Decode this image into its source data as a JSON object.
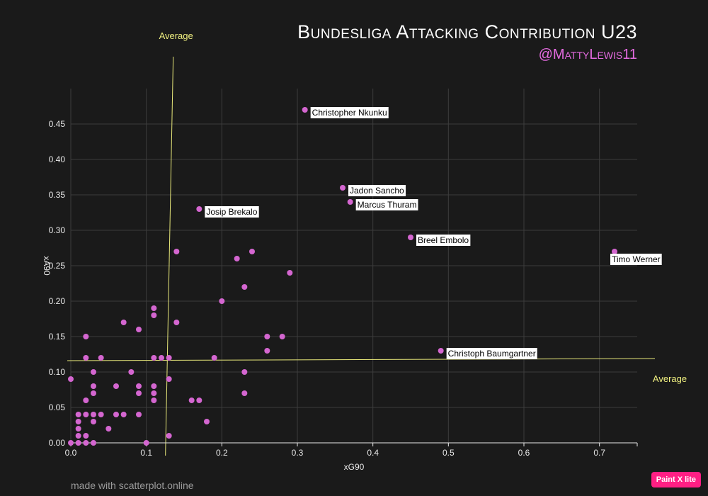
{
  "header": {
    "title": "Bundesliga Attacking Contribution U23",
    "subtitle": "@MattyLewis11"
  },
  "footer": {
    "credit": "made with scatterplot.online"
  },
  "badge": {
    "label": "Paint X lite"
  },
  "colors": {
    "background": "#1a1a1a",
    "point": "#d466d0",
    "average_line": "#e8e87a",
    "subtitle": "#e46be0",
    "badge": "#ff1f84"
  },
  "chart_data": {
    "type": "scatter",
    "xlabel": "xG90",
    "ylabel": "xA90",
    "xlim": [
      0,
      0.75
    ],
    "ylim": [
      0,
      0.5
    ],
    "x_ticks": [
      0,
      0.1,
      0.2,
      0.3,
      0.4,
      0.5,
      0.6,
      0.7
    ],
    "x_tick_labels": [
      "0.0",
      "0.1",
      "0.2",
      "0.3",
      "0.4",
      "0.5",
      "0.6",
      "0.7"
    ],
    "y_ticks": [
      0,
      0.05,
      0.1,
      0.15,
      0.2,
      0.25,
      0.3,
      0.35,
      0.4,
      0.45
    ],
    "y_tick_labels": [
      "0.00",
      "0.05",
      "0.10",
      "0.15",
      "0.20",
      "0.25",
      "0.30",
      "0.35",
      "0.40",
      "0.45"
    ],
    "grid": true,
    "averages": {
      "x": {
        "value": 0.13,
        "label": "Average"
      },
      "y": {
        "value": 0.11,
        "label": "Average"
      }
    },
    "labeled_points": [
      {
        "name": "Christopher Nkunku",
        "x": 0.31,
        "y": 0.47
      },
      {
        "name": "Jadon Sancho",
        "x": 0.36,
        "y": 0.36
      },
      {
        "name": "Marcus Thuram",
        "x": 0.37,
        "y": 0.34
      },
      {
        "name": "Josip Brekalo",
        "x": 0.17,
        "y": 0.33
      },
      {
        "name": "Breel Embolo",
        "x": 0.45,
        "y": 0.29
      },
      {
        "name": "Timo Werner",
        "x": 0.72,
        "y": 0.27
      },
      {
        "name": "Christoph Baumgartner",
        "x": 0.49,
        "y": 0.13
      }
    ],
    "points": [
      [
        0.14,
        0.27
      ],
      [
        0.24,
        0.27
      ],
      [
        0.22,
        0.26
      ],
      [
        0.29,
        0.24
      ],
      [
        0.23,
        0.22
      ],
      [
        0.2,
        0.2
      ],
      [
        0.11,
        0.19
      ],
      [
        0.11,
        0.18
      ],
      [
        0.07,
        0.17
      ],
      [
        0.14,
        0.17
      ],
      [
        0.09,
        0.16
      ],
      [
        0.02,
        0.15
      ],
      [
        0.26,
        0.15
      ],
      [
        0.28,
        0.15
      ],
      [
        0.26,
        0.13
      ],
      [
        0.02,
        0.12
      ],
      [
        0.04,
        0.12
      ],
      [
        0.11,
        0.12
      ],
      [
        0.12,
        0.12
      ],
      [
        0.13,
        0.12
      ],
      [
        0.19,
        0.12
      ],
      [
        0.03,
        0.1
      ],
      [
        0.08,
        0.1
      ],
      [
        0.23,
        0.1
      ],
      [
        0.0,
        0.09
      ],
      [
        0.13,
        0.09
      ],
      [
        0.03,
        0.08
      ],
      [
        0.06,
        0.08
      ],
      [
        0.09,
        0.08
      ],
      [
        0.11,
        0.08
      ],
      [
        0.03,
        0.07
      ],
      [
        0.09,
        0.07
      ],
      [
        0.11,
        0.07
      ],
      [
        0.23,
        0.07
      ],
      [
        0.02,
        0.06
      ],
      [
        0.11,
        0.06
      ],
      [
        0.16,
        0.06
      ],
      [
        0.17,
        0.06
      ],
      [
        0.01,
        0.04
      ],
      [
        0.02,
        0.04
      ],
      [
        0.03,
        0.04
      ],
      [
        0.04,
        0.04
      ],
      [
        0.06,
        0.04
      ],
      [
        0.07,
        0.04
      ],
      [
        0.09,
        0.04
      ],
      [
        0.01,
        0.03
      ],
      [
        0.03,
        0.03
      ],
      [
        0.18,
        0.03
      ],
      [
        0.01,
        0.02
      ],
      [
        0.05,
        0.02
      ],
      [
        0.01,
        0.01
      ],
      [
        0.02,
        0.01
      ],
      [
        0.13,
        0.01
      ],
      [
        0.0,
        0.0
      ],
      [
        0.01,
        0.0
      ],
      [
        0.02,
        0.0
      ],
      [
        0.03,
        0.0
      ],
      [
        0.1,
        0.0
      ]
    ]
  }
}
